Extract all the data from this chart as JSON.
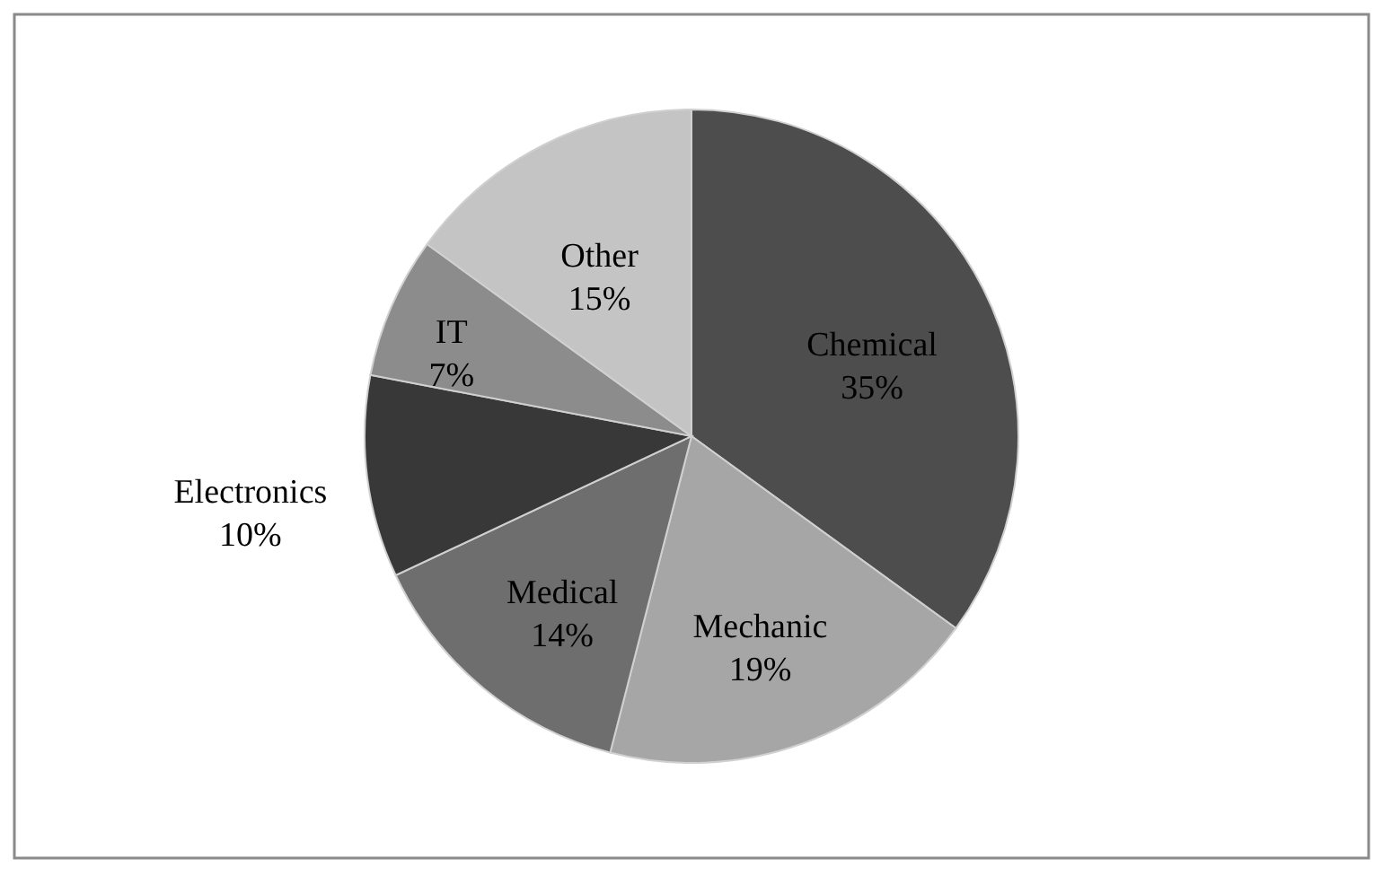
{
  "chart_data": {
    "type": "pie",
    "categories": [
      "Chemical",
      "Mechanic",
      "Medical",
      "Electronics",
      "IT",
      "Other"
    ],
    "values": [
      35,
      19,
      14,
      10,
      7,
      15
    ],
    "value_labels": [
      "35%",
      "19%",
      "14%",
      "10%",
      "7%",
      "15%"
    ],
    "colors": [
      "#4d4d4d",
      "#a6a6a6",
      "#6e6e6e",
      "#383838",
      "#8c8c8c",
      "#c4c4c4"
    ]
  }
}
